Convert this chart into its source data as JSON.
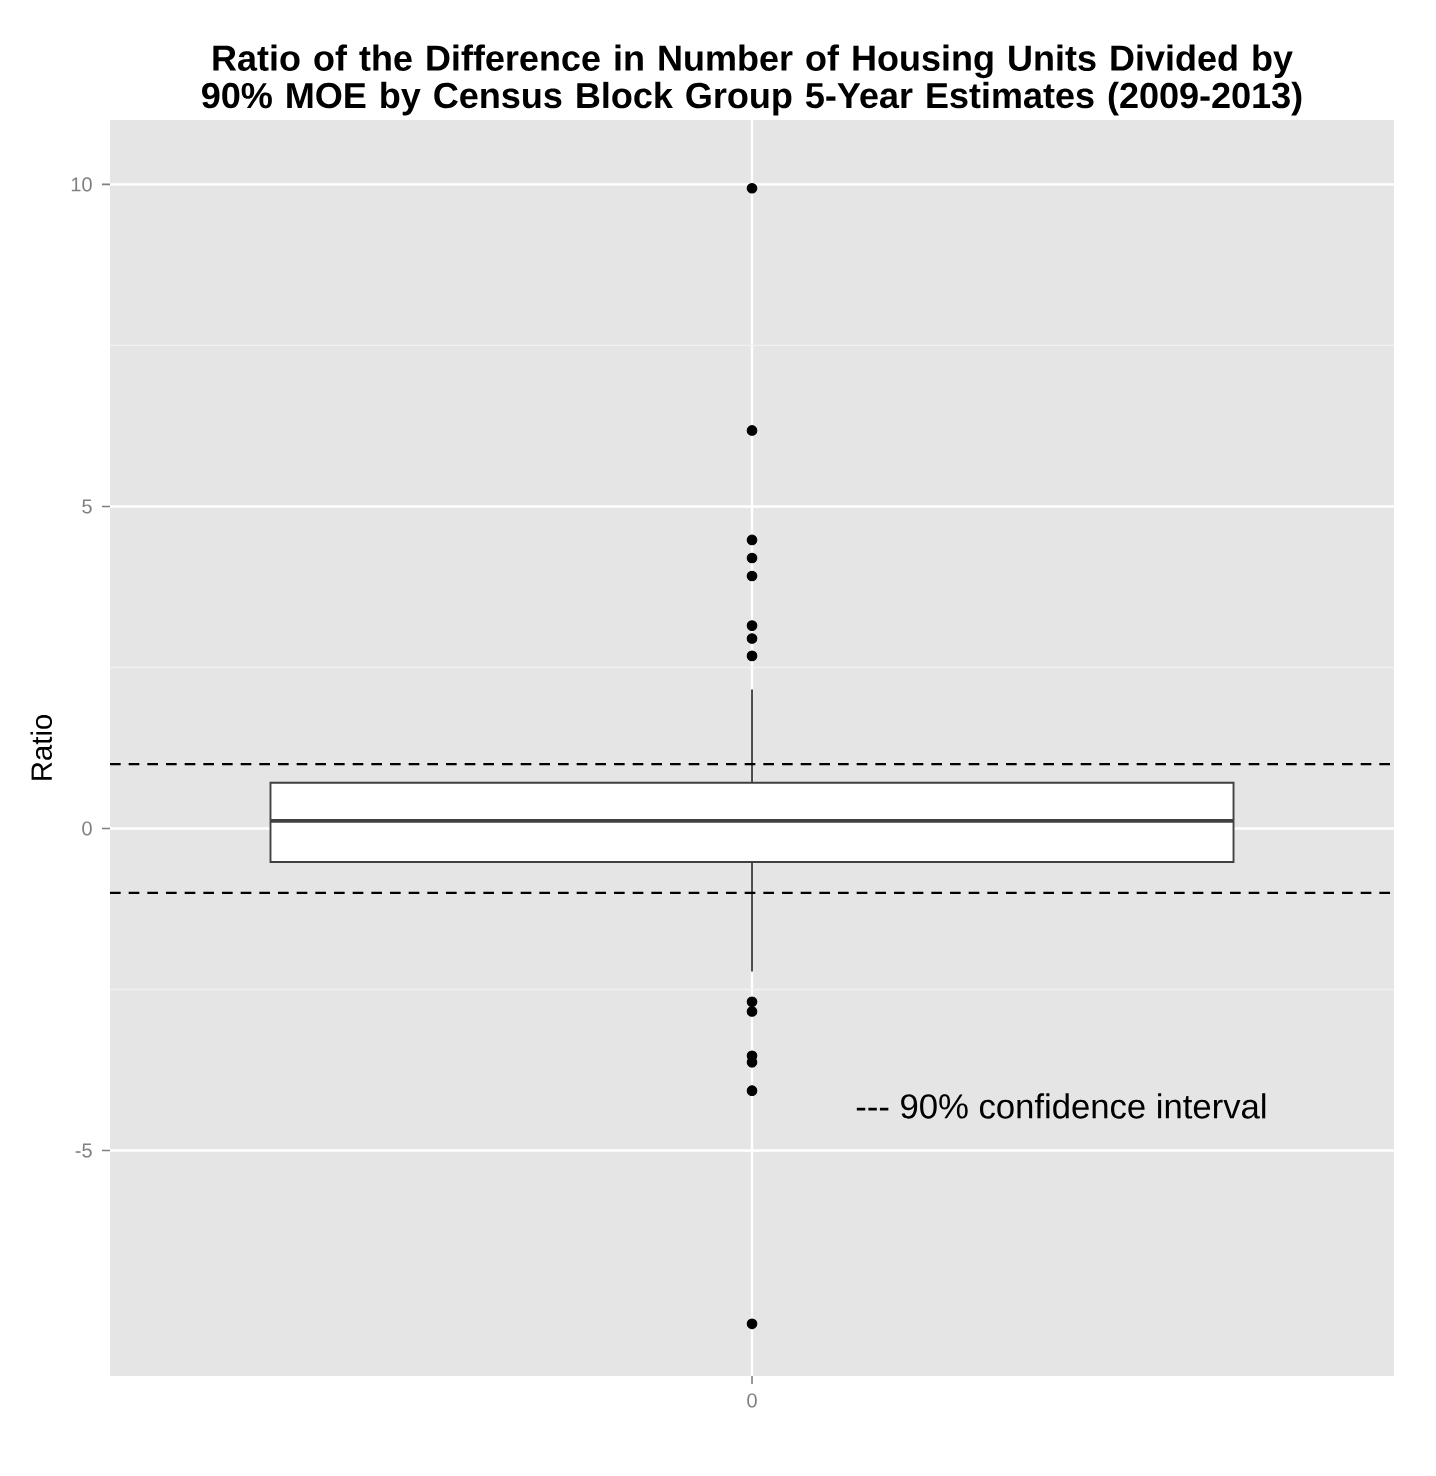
{
  "chart_data": {
    "type": "box",
    "title": "Ratio of the Difference in Number of Housing Units Divided by 90% MOE by Census Block Group 5-Year Estimates (2009-2013)",
    "ylabel": "Ratio",
    "categories": [
      "0"
    ],
    "boxes": [
      {
        "low": -2.22,
        "q1": -0.52,
        "median": 0.12,
        "q3": 0.71,
        "high": 2.16,
        "outliers": [
          9.94,
          6.18,
          4.48,
          4.2,
          3.92,
          3.15,
          2.95,
          2.68,
          -2.69,
          -2.84,
          -3.53,
          -3.63,
          -4.07,
          -7.69
        ]
      }
    ],
    "ylim": [
      -8.5,
      11
    ],
    "yticks": [
      -5,
      0,
      5,
      10
    ],
    "grid": true,
    "ref_lines": [
      {
        "axis": "y",
        "value": 1,
        "line_style": "dashed",
        "color": "#000000"
      },
      {
        "axis": "y",
        "value": -1,
        "line_style": "dashed",
        "color": "#000000"
      }
    ],
    "annotations": [
      "--- 90% confidence interval"
    ]
  }
}
